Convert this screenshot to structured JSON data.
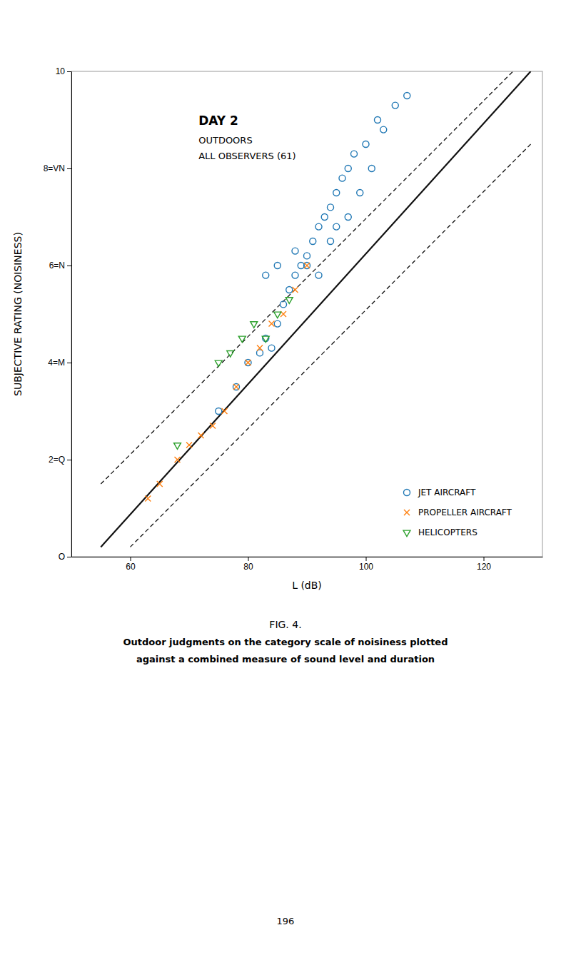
{
  "chart_data": {
    "type": "scatter",
    "title": "DAY 2",
    "subtitle": [
      "OUTDOORS",
      "ALL  OBSERVERS (61)"
    ],
    "xlabel": "L (dB)",
    "ylabel": "SUBJECTIVE  RATING  (NOISINESS)",
    "xlim": [
      50,
      130
    ],
    "ylim": [
      0,
      10
    ],
    "xticks": [
      60,
      80,
      100,
      120
    ],
    "yticks": [
      {
        "value": 0,
        "label": "O"
      },
      {
        "value": 2,
        "label": "2=Q"
      },
      {
        "value": 4,
        "label": "4=M"
      },
      {
        "value": 6,
        "label": "6=N"
      },
      {
        "value": 8,
        "label": "8=VN"
      },
      10
    ],
    "grid": false,
    "legend": "lower right",
    "series": [
      {
        "type": "line",
        "line_style": "solid",
        "color": "#111111",
        "x": [
          55,
          128
        ],
        "values": [
          0.2,
          10.0
        ]
      },
      {
        "type": "line",
        "line_style": "dashed",
        "color": "#111111",
        "x": [
          55,
          125
        ],
        "values": [
          1.5,
          10.0
        ]
      },
      {
        "type": "line",
        "line_style": "dashed",
        "color": "#111111",
        "x": [
          60,
          128
        ],
        "values": [
          0.2,
          8.5
        ]
      },
      {
        "name": "JET AIRCRAFT",
        "type": "scatter",
        "marker": "circle",
        "x": [
          75,
          78,
          80,
          82,
          83,
          84,
          85,
          86,
          87,
          88,
          89,
          90,
          91,
          92,
          93,
          94,
          95,
          96,
          97,
          98,
          100,
          102,
          105,
          107,
          83,
          85,
          88,
          90,
          92,
          94,
          95,
          97,
          99,
          101,
          103
        ],
        "values": [
          3.0,
          3.5,
          4.0,
          4.2,
          4.5,
          4.3,
          4.8,
          5.2,
          5.5,
          5.8,
          6.0,
          6.2,
          6.5,
          6.8,
          7.0,
          7.2,
          7.5,
          7.8,
          8.0,
          8.3,
          8.5,
          9.0,
          9.3,
          9.5,
          5.8,
          6.0,
          6.3,
          6.0,
          5.8,
          6.5,
          6.8,
          7.0,
          7.5,
          8.0,
          8.8
        ]
      },
      {
        "name": "PROPELLER AIRCRAFT",
        "type": "scatter",
        "marker": "x",
        "x": [
          63,
          65,
          68,
          70,
          72,
          74,
          76,
          78,
          80,
          82,
          84,
          86,
          88,
          90
        ],
        "values": [
          1.2,
          1.5,
          2.0,
          2.3,
          2.5,
          2.7,
          3.0,
          3.5,
          4.0,
          4.3,
          4.8,
          5.0,
          5.5,
          6.0
        ]
      },
      {
        "name": "HELICOPTERS",
        "type": "scatter",
        "marker": "triangle-down",
        "x": [
          75,
          77,
          79,
          81,
          83,
          85,
          87,
          68
        ],
        "values": [
          4.0,
          4.2,
          4.5,
          4.8,
          4.5,
          5.0,
          5.3,
          2.3
        ]
      }
    ],
    "annotations": [
      "FIG. 4.",
      "Outdoor judgments on the category scale of noisiness plotted",
      "against a combined measure of sound level and duration",
      "196"
    ]
  }
}
